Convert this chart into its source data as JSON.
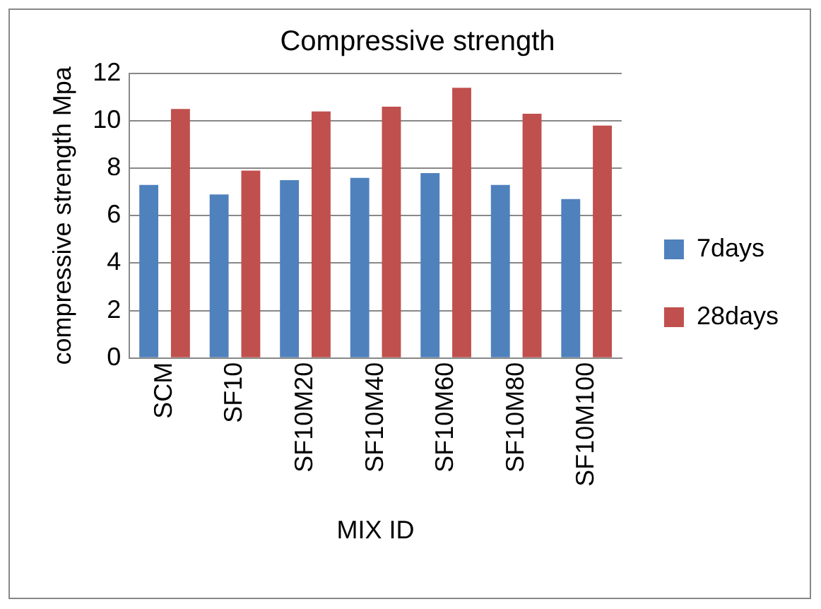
{
  "chart_data": {
    "type": "bar",
    "title": "Compressive strength",
    "xlabel": "MIX ID",
    "ylabel": "compressive strength Mpa",
    "categories": [
      "SCM",
      "SF10",
      "SF10M20",
      "SF10M40",
      "SF10M60",
      "SF10M80",
      "SF10M100"
    ],
    "series": [
      {
        "name": "7days",
        "color": "#4f81bd",
        "values": [
          7.3,
          6.9,
          7.5,
          7.6,
          7.8,
          7.3,
          6.7
        ]
      },
      {
        "name": "28days",
        "color": "#c0504d",
        "values": [
          10.5,
          7.9,
          10.4,
          10.6,
          11.4,
          10.3,
          9.8
        ]
      }
    ],
    "ylim": [
      0,
      12
    ],
    "yticks": [
      0,
      2,
      4,
      6,
      8,
      10,
      12
    ],
    "grid": "y",
    "legend": "right"
  }
}
